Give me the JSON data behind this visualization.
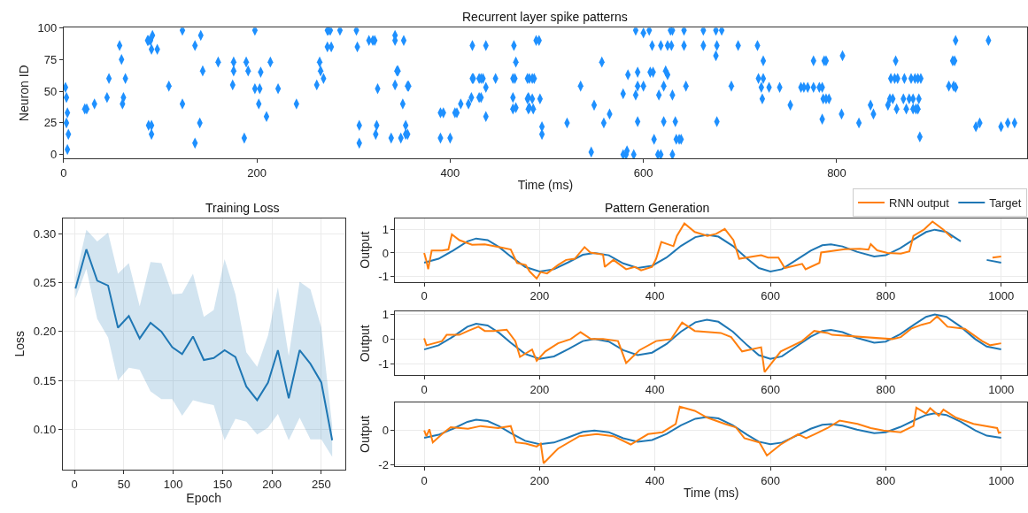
{
  "chart_data": [
    {
      "type": "scatter",
      "title": "Recurrent layer spike patterns",
      "xlabel": "Time (ms)",
      "ylabel": "Neuron ID",
      "xlim": [
        0,
        997
      ],
      "ylim": [
        -3,
        100
      ],
      "xticks": [
        0,
        200,
        400,
        600,
        800
      ],
      "yticks": [
        0,
        25,
        50,
        75,
        100
      ],
      "grid": false,
      "legend": false,
      "marker": "diamond",
      "x": [
        2,
        3,
        4,
        3,
        5,
        4,
        22,
        24,
        32,
        45,
        47,
        58,
        60,
        61,
        62,
        64,
        87,
        88,
        90,
        92,
        91,
        97,
        88,
        91,
        91,
        109,
        123,
        123,
        136,
        136,
        141,
        142,
        144,
        160,
        176,
        176,
        175,
        187,
        189,
        191,
        198,
        198,
        202,
        203,
        204,
        210,
        214,
        222,
        241,
        262,
        265,
        266,
        269,
        273,
        274,
        276,
        273,
        277,
        286,
        303,
        304,
        306,
        306,
        316,
        320,
        322,
        324,
        323,
        325,
        339,
        343,
        343,
        343,
        345,
        346,
        349,
        351,
        352,
        354,
        354,
        356,
        356,
        357,
        390,
        393,
        390,
        400,
        405,
        407,
        411,
        419,
        422,
        423,
        424,
        423,
        430,
        432,
        430,
        432,
        434,
        437,
        437,
        437,
        447,
        465,
        465,
        467,
        466,
        468,
        468,
        481,
        482,
        482,
        465,
        480,
        485,
        487,
        489,
        492,
        480,
        485,
        493,
        481,
        486,
        495,
        495,
        521,
        535,
        546,
        549,
        557,
        559,
        565,
        579,
        579,
        582,
        583,
        584,
        592,
        592,
        590,
        594,
        594,
        594,
        600,
        600,
        606,
        607,
        609,
        610,
        611,
        615,
        616,
        618,
        618,
        621,
        621,
        623,
        625,
        625,
        628,
        629,
        630,
        630,
        630,
        634,
        633,
        637,
        639,
        642,
        642,
        644,
        662,
        662,
        675,
        675,
        676,
        676,
        681,
        691,
        698,
        718,
        719,
        722,
        723,
        724,
        724,
        730,
        741,
        752,
        763,
        766,
        770,
        776,
        776,
        782,
        785,
        785,
        786,
        787,
        789,
        789,
        792,
        805,
        806,
        823,
        835,
        838,
        853,
        855,
        856,
        858,
        860,
        861,
        862,
        863,
        869,
        870,
        872,
        875,
        877,
        879,
        879,
        881,
        884,
        885,
        887,
        884,
        886,
        882,
        916,
        920,
        921,
        922,
        923,
        923,
        944,
        948,
        957,
        970,
        977,
        984
      ],
      "series": [
        {
          "color": "#1e90ff",
          "values": [
            53,
            45,
            33,
            25,
            16,
            4,
            36,
            36,
            40,
            45,
            60,
            86,
            75,
            40,
            45,
            60,
            90,
            90,
            90,
            94,
            83,
            83,
            23,
            23,
            16,
            54,
            98,
            40,
            86,
            9,
            25,
            94,
            66,
            73,
            73,
            66,
            55,
            13,
            73,
            66,
            98,
            52,
            40,
            52,
            65,
            30,
            73,
            52,
            40,
            55,
            73,
            66,
            60,
            98,
            98,
            98,
            85,
            85,
            98,
            98,
            85,
            23,
            9,
            90,
            90,
            90,
            23,
            16,
            52,
            13,
            94,
            90,
            55,
            66,
            66,
            13,
            40,
            90,
            23,
            16,
            16,
            54,
            54,
            33,
            33,
            13,
            13,
            33,
            33,
            40,
            40,
            45,
            60,
            60,
            86,
            45,
            45,
            60,
            60,
            60,
            86,
            30,
            53,
            60,
            45,
            60,
            60,
            86,
            73,
            37,
            45,
            60,
            37,
            36,
            60,
            60,
            60,
            90,
            90,
            44,
            44,
            44,
            36,
            36,
            22,
            16,
            25,
            54,
            2,
            39,
            73,
            25,
            32,
            48,
            0,
            0,
            3,
            63,
            98,
            47,
            0,
            54,
            65,
            26,
            96,
            54,
            98,
            65,
            86,
            65,
            12,
            0,
            47,
            86,
            0,
            54,
            26,
            66,
            63,
            86,
            98,
            86,
            47,
            98,
            0,
            12,
            26,
            12,
            12,
            98,
            86,
            54,
            98,
            86,
            78,
            98,
            86,
            26,
            98,
            54,
            86,
            86,
            60,
            53,
            44,
            74,
            60,
            53,
            53,
            39,
            53,
            53,
            53,
            74,
            53,
            53,
            53,
            28,
            44,
            74,
            74,
            44,
            44,
            32,
            78,
            25,
            39,
            32,
            39,
            44,
            60,
            44,
            60,
            74,
            36,
            60,
            44,
            60,
            36,
            44,
            60,
            36,
            44,
            60,
            60,
            44,
            60,
            36,
            14,
            36,
            54,
            74,
            54,
            74,
            53,
            90,
            22,
            25,
            90,
            22,
            25,
            25
          ]
        }
      ]
    },
    {
      "type": "line",
      "title": "Training Loss",
      "xlabel": "Epoch",
      "ylabel": "Loss",
      "xlim": [
        -12,
        274
      ],
      "ylim": [
        0.059,
        0.316
      ],
      "xticks": [
        0,
        50,
        100,
        150,
        200,
        250
      ],
      "yticks": [
        {
          "value": 0.1,
          "label": "0.10"
        },
        {
          "value": 0.15,
          "label": "0.15"
        },
        {
          "value": 0.2,
          "label": "0.20"
        },
        {
          "value": 0.25,
          "label": "0.25"
        },
        {
          "value": 0.3,
          "label": "0.30"
        }
      ],
      "grid": true,
      "legend": false,
      "x": [
        1,
        12,
        23,
        34,
        44,
        55,
        66,
        77,
        88,
        99,
        109,
        120,
        131,
        141,
        152,
        163,
        174,
        185,
        196,
        206,
        217,
        228,
        239,
        250,
        261
      ],
      "series": [
        {
          "color": "#1f77b4",
          "values": [
            0.244,
            0.284,
            0.252,
            0.247,
            0.204,
            0.216,
            0.193,
            0.209,
            0.2,
            0.184,
            0.177,
            0.195,
            0.171,
            0.173,
            0.181,
            0.174,
            0.144,
            0.13,
            0.148,
            0.181,
            0.132,
            0.181,
            0.167,
            0.148,
            0.089
          ],
          "upper": [
            0.255,
            0.304,
            0.292,
            0.301,
            0.259,
            0.27,
            0.226,
            0.271,
            0.27,
            0.238,
            0.239,
            0.259,
            0.215,
            0.222,
            0.274,
            0.238,
            0.179,
            0.164,
            0.196,
            0.245,
            0.175,
            0.251,
            0.243,
            0.204,
            0.104
          ],
          "lower": [
            0.234,
            0.264,
            0.213,
            0.194,
            0.15,
            0.163,
            0.161,
            0.139,
            0.131,
            0.131,
            0.114,
            0.13,
            0.127,
            0.125,
            0.089,
            0.111,
            0.108,
            0.095,
            0.102,
            0.116,
            0.089,
            0.112,
            0.09,
            0.09,
            0.072
          ]
        }
      ]
    },
    {
      "type": "line",
      "title": "Pattern Generation",
      "ylabel": "Output",
      "xlim": [
        -50,
        1045
      ],
      "ylim": [
        -1.25,
        1.5
      ],
      "xticks": [
        0,
        200,
        400,
        600,
        800,
        1000
      ],
      "yticks": [
        -1,
        0,
        1
      ],
      "grid": true,
      "legend": "top right",
      "series": [
        {
          "name": "Target",
          "color": "#1f77b4",
          "x": [
            0,
            25,
            50,
            75,
            90,
            110,
            130,
            150,
            175,
            200,
            225,
            250,
            275,
            295,
            320,
            345,
            370,
            395,
            420,
            445,
            470,
            490,
            510,
            535,
            560,
            580,
            600,
            620,
            645,
            670,
            690,
            705,
            725,
            750,
            780,
            800,
            825,
            850,
            870,
            885,
            905,
            930,
            955,
            975,
            1000
          ],
          "values": [
            -0.42,
            -0.25,
            0.1,
            0.5,
            0.62,
            0.55,
            0.25,
            -0.15,
            -0.6,
            -0.8,
            -0.7,
            -0.4,
            -0.08,
            0,
            -0.1,
            -0.45,
            -0.65,
            -0.55,
            -0.2,
            0.3,
            0.68,
            0.78,
            0.7,
            0.3,
            -0.25,
            -0.65,
            -0.8,
            -0.7,
            -0.3,
            0.1,
            0.33,
            0.37,
            0.28,
            0.05,
            -0.15,
            -0.1,
            0.2,
            0.6,
            0.9,
            1.0,
            0.9,
            0.5,
            null,
            -0.3,
            -0.42
          ]
        },
        {
          "name": "RNN output",
          "color": "#ff7f0e",
          "x": [
            0,
            4,
            7,
            13,
            31,
            42,
            48,
            61,
            83,
            105,
            135,
            150,
            161,
            176,
            183,
            195,
            202,
            213,
            232,
            246,
            261,
            278,
            288,
            310,
            313,
            328,
            350,
            365,
            376,
            395,
            402,
            411,
            432,
            438,
            451,
            469,
            491,
            506,
            521,
            536,
            546,
            584,
            596,
            614,
            625,
            655,
            661,
            685,
            688,
            729,
            755,
            770,
            774,
            785,
            803,
            826,
            841,
            848,
            866,
            881,
            900,
            915,
            950,
            985,
            1000
          ],
          "values": [
            0,
            -0.35,
            -0.7,
            0.1,
            0.1,
            0.15,
            0.8,
            0.55,
            0.35,
            0.37,
            0.23,
            0.15,
            -0.43,
            -0.52,
            -0.8,
            -1.1,
            -0.82,
            -0.88,
            -0.52,
            -0.3,
            -0.25,
            0.25,
            0.02,
            -0.07,
            -0.6,
            -0.3,
            -0.7,
            -0.6,
            -0.75,
            -0.6,
            -0.25,
            0.47,
            0.29,
            0.73,
            1.27,
            0.9,
            0.73,
            0.82,
            1.03,
            0.55,
            -0.25,
            -0.1,
            -0.2,
            -0.2,
            -0.65,
            -0.47,
            -0.7,
            -0.43,
            0.02,
            0.16,
            0.18,
            0.14,
            0.38,
            0.11,
            0,
            -0.03,
            0.07,
            0.73,
            1.0,
            1.35,
            1.0,
            0.64,
            null,
            -0.2,
            -0.15
          ]
        }
      ]
    },
    {
      "type": "line",
      "ylabel": "Output",
      "xlim": [
        -50,
        1045
      ],
      "ylim": [
        -1.47,
        1.12
      ],
      "xticks": [
        0,
        200,
        400,
        600,
        800,
        1000
      ],
      "yticks": [
        -1,
        0,
        1
      ],
      "grid": true,
      "legend": false,
      "series": [
        {
          "color": "#1f77b4",
          "x": [
            0,
            25,
            50,
            75,
            90,
            110,
            130,
            150,
            175,
            200,
            225,
            250,
            275,
            295,
            320,
            345,
            370,
            395,
            420,
            445,
            470,
            490,
            510,
            535,
            560,
            580,
            600,
            620,
            645,
            670,
            690,
            705,
            725,
            750,
            780,
            800,
            825,
            850,
            870,
            885,
            905,
            930,
            955,
            975,
            1000
          ],
          "values": [
            -0.42,
            -0.25,
            0.1,
            0.5,
            0.62,
            0.55,
            0.25,
            -0.15,
            -0.6,
            -0.8,
            -0.7,
            -0.4,
            -0.08,
            0,
            -0.1,
            -0.45,
            -0.65,
            -0.55,
            -0.2,
            0.3,
            0.68,
            0.78,
            0.7,
            0.3,
            -0.25,
            -0.65,
            -0.8,
            -0.7,
            -0.3,
            0.1,
            0.33,
            0.37,
            0.28,
            0.05,
            -0.15,
            -0.1,
            0.2,
            0.6,
            0.9,
            1.0,
            0.9,
            0.5,
            0.0,
            -0.3,
            -0.42
          ]
        },
        {
          "color": "#ff7f0e",
          "x": [
            0,
            4,
            31,
            39,
            61,
            76,
            94,
            105,
            120,
            143,
            158,
            166,
            187,
            195,
            210,
            232,
            254,
            271,
            289,
            310,
            336,
            350,
            373,
            402,
            428,
            447,
            469,
            514,
            532,
            551,
            584,
            590,
            618,
            655,
            676,
            699,
            707,
            811,
            826,
            844,
            862,
            877,
            889,
            907,
            937,
            967,
            981,
            1000
          ],
          "values": [
            0.03,
            -0.25,
            -0.08,
            0.17,
            0.17,
            0.33,
            0.5,
            0.33,
            0.33,
            0.38,
            -0.08,
            -0.72,
            -0.42,
            -0.88,
            -0.5,
            -0.17,
            0,
            0.28,
            0,
            0,
            -0.08,
            -0.97,
            -0.45,
            -0.08,
            0,
            0.67,
            0.33,
            0.25,
            0.08,
            -0.5,
            -0.33,
            -1.33,
            -0.5,
            -0.08,
            0.33,
            0.25,
            0.17,
            0,
            0.08,
            0.42,
            0.58,
            0.67,
            0.92,
            0.5,
            0.42,
            -0.08,
            -0.25,
            -0.17
          ]
        }
      ]
    },
    {
      "type": "line",
      "xlabel": "Time (ms)",
      "ylabel": "Output",
      "xlim": [
        -50,
        1045
      ],
      "ylim": [
        -2.07,
        1.64
      ],
      "xticks": [
        0,
        200,
        400,
        600,
        800,
        1000
      ],
      "yticks": [
        -2,
        0
      ],
      "grid": true,
      "legend": false,
      "series": [
        {
          "color": "#1f77b4",
          "x": [
            0,
            25,
            50,
            75,
            90,
            110,
            130,
            150,
            175,
            200,
            225,
            250,
            275,
            295,
            320,
            345,
            370,
            395,
            420,
            445,
            470,
            490,
            510,
            535,
            560,
            580,
            600,
            620,
            645,
            670,
            690,
            705,
            725,
            750,
            780,
            800,
            825,
            850,
            870,
            885,
            905,
            930,
            955,
            975,
            1000
          ],
          "values": [
            -0.42,
            -0.25,
            0.1,
            0.5,
            0.62,
            0.55,
            0.25,
            -0.15,
            -0.6,
            -0.8,
            -0.7,
            -0.4,
            -0.08,
            0,
            -0.1,
            -0.45,
            -0.65,
            -0.55,
            -0.2,
            0.3,
            0.68,
            0.78,
            0.7,
            0.3,
            -0.25,
            -0.65,
            -0.8,
            -0.7,
            -0.3,
            0.1,
            0.33,
            0.37,
            0.28,
            0.05,
            -0.15,
            -0.1,
            0.2,
            0.6,
            0.9,
            1.0,
            0.9,
            0.5,
            0.0,
            -0.3,
            -0.42
          ]
        },
        {
          "color": "#ff7f0e",
          "x": [
            0,
            4,
            9,
            15,
            31,
            46,
            76,
            98,
            128,
            150,
            159,
            176,
            187,
            195,
            202,
            207,
            232,
            269,
            299,
            328,
            358,
            388,
            413,
            436,
            443,
            469,
            491,
            521,
            540,
            555,
            581,
            594,
            618,
            648,
            662,
            677,
            699,
            720,
            751,
            774,
            796,
            826,
            848,
            853,
            870,
            877,
            892,
            900,
            922,
            952,
            993,
            996,
            1000
          ],
          "values": [
            0,
            -0.33,
            0.07,
            -0.69,
            -0.21,
            0.19,
            0.1,
            0.26,
            0.14,
            0.26,
            -0.69,
            -0.76,
            -0.86,
            -0.93,
            -0.76,
            -1.9,
            -1.05,
            -0.33,
            -0.21,
            -0.33,
            -0.81,
            -0.21,
            -0.1,
            0.38,
            1.38,
            1.14,
            0.74,
            0.38,
            0.19,
            -0.45,
            -0.69,
            -1.45,
            -0.81,
            -0.21,
            -0.45,
            -0.21,
            0.14,
            0.57,
            0.38,
            0.14,
            0,
            -0.1,
            0.26,
            1.33,
            0.98,
            1.29,
            0.86,
            1.21,
            0.74,
            0.38,
            0.14,
            -0.14,
            -0.1
          ]
        }
      ]
    }
  ]
}
